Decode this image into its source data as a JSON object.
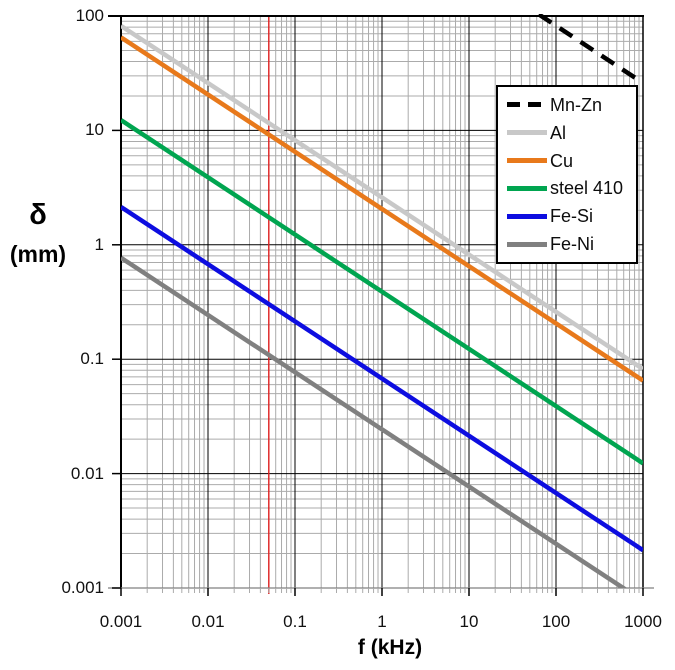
{
  "chart_data": {
    "type": "line",
    "title": "",
    "x_scale": "log",
    "y_scale": "log",
    "xlim": [
      0.001,
      1000
    ],
    "ylim": [
      0.001,
      100
    ],
    "xlabel": "f (kHz)",
    "ylabel_symbol": "δ",
    "ylabel_unit": "(mm)",
    "grid": "log-log grid, major and minor lines on both axes",
    "legend_position": "top-right inside plot area",
    "slope_note": "every line has slope -1/2 on the log-log axes (skin depth δ ∝ f^-0.5)",
    "series": [
      {
        "name": "Mn-Zn",
        "color": "#000000",
        "dash": true,
        "delta_mm_at_1Hz": 26000,
        "visible_points_f_kHz_delta_mm": [
          [
            68,
            100
          ],
          [
            1000,
            26
          ]
        ]
      },
      {
        "name": "Al",
        "color": "#c8c8c8",
        "dash": false,
        "delta_mm_at_1Hz": 82,
        "visible_points_f_kHz_delta_mm": [
          [
            0.001,
            82
          ],
          [
            1000,
            0.082
          ]
        ]
      },
      {
        "name": "Cu",
        "color": "#e8791b",
        "dash": false,
        "delta_mm_at_1Hz": 65,
        "visible_points_f_kHz_delta_mm": [
          [
            0.001,
            65
          ],
          [
            1000,
            0.065
          ]
        ]
      },
      {
        "name": "steel 410",
        "color": "#00a550",
        "dash": false,
        "delta_mm_at_1Hz": 12.3,
        "visible_points_f_kHz_delta_mm": [
          [
            0.001,
            12.3
          ],
          [
            1000,
            0.0123
          ]
        ]
      },
      {
        "name": "Fe-Si",
        "color": "#0d0de0",
        "dash": false,
        "delta_mm_at_1Hz": 2.14,
        "visible_points_f_kHz_delta_mm": [
          [
            0.001,
            2.14
          ],
          [
            1000,
            0.00214
          ]
        ]
      },
      {
        "name": "Fe-Ni",
        "color": "#808080",
        "dash": false,
        "delta_mm_at_1Hz": 0.77,
        "visible_points_f_kHz_delta_mm": [
          [
            0.001,
            0.77
          ],
          [
            593,
            0.001
          ]
        ]
      }
    ],
    "reference_line": {
      "orientation": "vertical",
      "f_kHz": 0.05,
      "color": "#e02020"
    }
  },
  "x_axis": {
    "title": "f (kHz)",
    "tick_labels": [
      "0.001",
      "0.01",
      "0.1",
      "1",
      "10",
      "100",
      "1000"
    ],
    "tick_values": [
      0.001,
      0.01,
      0.1,
      1,
      10,
      100,
      1000
    ]
  },
  "y_axis": {
    "symbol": "δ",
    "unit": "(mm)",
    "tick_labels": [
      "100",
      "10",
      "1",
      "0.1",
      "0.01",
      "0.001"
    ],
    "tick_values": [
      100,
      10,
      1,
      0.1,
      0.01,
      0.001
    ]
  },
  "colors": {
    "background": "#ffffff",
    "minor_grid": "#ababab",
    "major_grid": "#000000",
    "plot_border": "#000000",
    "bottom_axis_line": "#808080",
    "reference_line": "#e02020",
    "tick_text": "#111111"
  }
}
